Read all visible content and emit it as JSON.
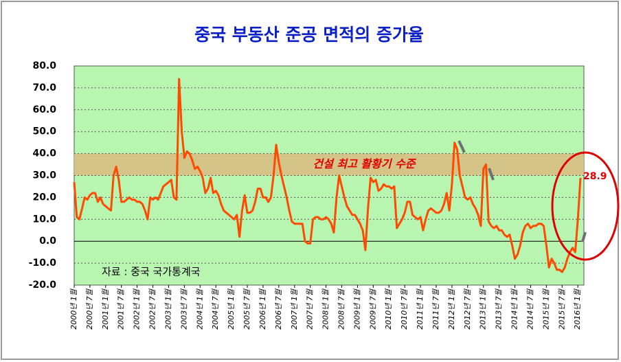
{
  "chart_data": {
    "type": "line",
    "title": "중국 부동산  준공 면적의 증가율",
    "source": "자료 : 중국 국가통계국",
    "highlight_band": {
      "range": [
        30,
        40
      ],
      "label": "건설 최고 활황기 수준"
    },
    "categories": [
      "2000년 1월",
      null,
      null,
      null,
      null,
      null,
      "2000년 7월",
      null,
      null,
      null,
      null,
      null,
      "2001년 1월",
      null,
      null,
      null,
      null,
      null,
      "2001년 7월",
      null,
      null,
      null,
      null,
      null,
      "2002년 1월",
      null,
      null,
      null,
      null,
      null,
      "2002년 7월",
      null,
      null,
      null,
      null,
      null,
      "2003년 1월",
      null,
      null,
      null,
      null,
      null,
      "2003년 7월",
      null,
      null,
      null,
      null,
      null,
      "2004년 1월",
      null,
      null,
      null,
      null,
      null,
      "2004년 7월",
      null,
      null,
      null,
      null,
      null,
      "2005년 1월",
      null,
      null,
      null,
      null,
      null,
      "2005년 7월",
      null,
      null,
      null,
      null,
      null,
      "2006년 1월",
      null,
      null,
      null,
      null,
      null,
      "2006년 7월",
      null,
      null,
      null,
      null,
      null,
      "2007년 1월",
      null,
      null,
      null,
      null,
      null,
      "2007년 7월",
      null,
      null,
      null,
      null,
      null,
      "2008년 1월",
      null,
      null,
      null,
      null,
      null,
      "2008년 7월",
      null,
      null,
      null,
      null,
      null,
      "2009년 1월",
      null,
      null,
      null,
      null,
      null,
      "2009년 7월",
      null,
      null,
      null,
      null,
      null,
      "2010년 1월",
      null,
      null,
      null,
      null,
      null,
      "2010년 7월",
      null,
      null,
      null,
      null,
      null,
      "2011년 1월",
      null,
      null,
      null,
      null,
      null,
      "2011년 7월",
      null,
      null,
      null,
      null,
      null,
      "2012년 1월",
      null,
      null,
      null,
      null,
      null,
      "2012년 7월",
      null,
      null,
      null,
      null,
      null,
      "2013년 1월",
      null,
      null,
      null,
      null,
      null,
      "2013년 7월",
      null,
      null,
      null,
      null,
      null,
      "2014년 1월",
      null,
      null,
      null,
      null,
      null,
      "2014년 7월",
      null,
      null,
      null,
      null,
      null,
      "2015년 1월",
      null,
      null,
      null,
      null,
      null,
      "2015년 7월",
      null,
      null,
      null,
      null,
      null,
      "2016년 1월",
      null
    ],
    "series": [
      {
        "color": "#ff4a00",
        "values": [
          27,
          11,
          10,
          15,
          20,
          19,
          21,
          22,
          22,
          18,
          20,
          17,
          16,
          15,
          14,
          30,
          34,
          28,
          18,
          18,
          19,
          20,
          19,
          19,
          18,
          18,
          17,
          14,
          10,
          20,
          19,
          20,
          19,
          22,
          25,
          26,
          27,
          28,
          20,
          19,
          74,
          50,
          38,
          41,
          40,
          37,
          33,
          34,
          32,
          29,
          22,
          24,
          29,
          22,
          23,
          21,
          17,
          14,
          13,
          12,
          11,
          10,
          12,
          2,
          14,
          21,
          13,
          13,
          14,
          18,
          24,
          24,
          20,
          20,
          18,
          20,
          30,
          44,
          36,
          30,
          25,
          20,
          14,
          9,
          8,
          8,
          8,
          8,
          0,
          -1,
          -1,
          10,
          11,
          11,
          10,
          10,
          11,
          10,
          8,
          4,
          20,
          30,
          25,
          20,
          16,
          14,
          12,
          12,
          10,
          8,
          5,
          -4,
          15,
          29,
          27,
          28,
          23,
          24,
          26,
          25,
          25,
          24,
          25,
          6,
          8,
          10,
          13,
          18,
          18,
          12,
          11,
          10,
          11,
          5,
          10,
          14,
          15,
          14,
          13,
          13,
          14,
          17,
          22,
          14,
          26,
          45,
          42,
          30,
          25,
          20,
          19,
          20,
          17,
          15,
          12,
          7,
          33,
          35,
          9,
          7,
          6,
          7,
          5,
          5,
          3,
          2,
          3,
          -2,
          -8,
          -6,
          -2,
          4,
          7,
          8,
          6,
          7,
          7,
          8,
          8,
          7,
          -2,
          -12,
          -8,
          -10,
          -13,
          -13,
          -14,
          -12,
          -8,
          -5,
          -3,
          -5,
          10,
          28.9
        ]
      }
    ],
    "ylim": [
      -20,
      80
    ],
    "yticks": [
      {
        "value": -20,
        "label": "-20.0"
      },
      {
        "value": -10,
        "label": "-10.0"
      },
      {
        "value": 0,
        "label": "0.0"
      },
      {
        "value": 10,
        "label": "10.0"
      },
      {
        "value": 20,
        "label": "20.0"
      },
      {
        "value": 30,
        "label": "30.0"
      },
      {
        "value": 40,
        "label": "40.0"
      },
      {
        "value": 50,
        "label": "50.0"
      },
      {
        "value": 60,
        "label": "60.0"
      },
      {
        "value": 70,
        "label": "70.0"
      },
      {
        "value": 80,
        "label": "80.0"
      }
    ],
    "grid": true
  }
}
